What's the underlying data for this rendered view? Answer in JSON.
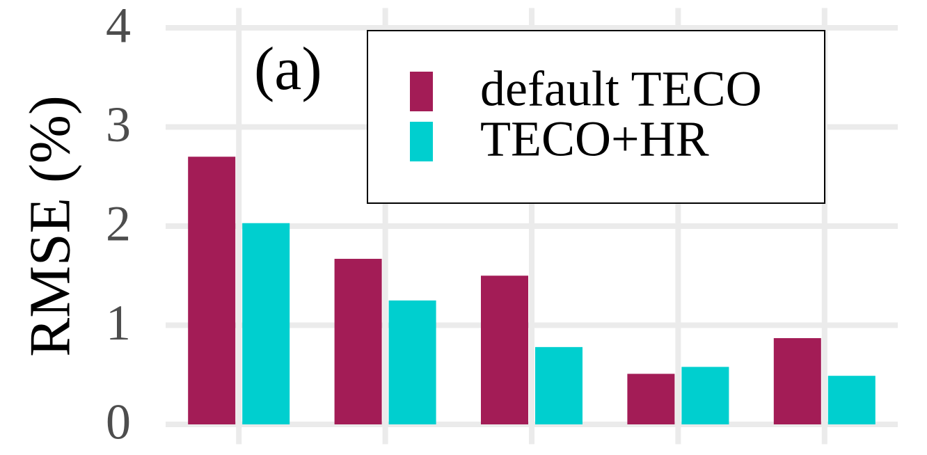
{
  "chart_data": {
    "type": "bar",
    "annotation": "(a)",
    "y_label": "RMSE (%)",
    "categories": [
      null,
      null,
      null,
      null,
      null
    ],
    "series": [
      {
        "name": "default TECO",
        "color": "#a31c56",
        "values": [
          2.7,
          1.67,
          1.5,
          0.51,
          0.87
        ]
      },
      {
        "name": "TECO+HR",
        "color": "#00cfcf",
        "values": [
          2.03,
          1.25,
          0.78,
          0.58,
          0.49
        ]
      }
    ],
    "ylim": [
      -0.2,
      4.2
    ],
    "yticks": [
      0,
      1,
      2,
      3,
      4
    ],
    "grid": true,
    "legend": "top-right"
  }
}
